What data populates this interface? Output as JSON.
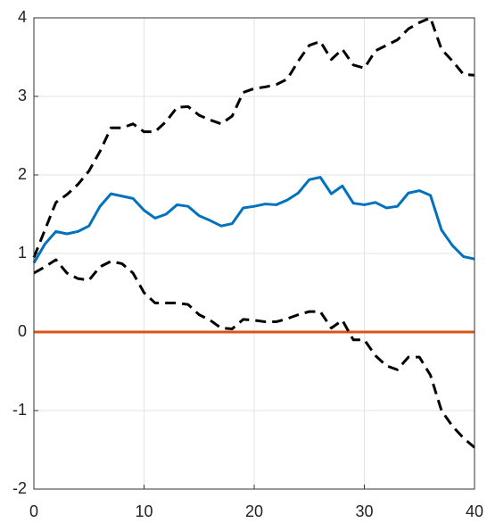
{
  "chart_data": {
    "type": "line",
    "x": [
      0,
      1,
      2,
      3,
      4,
      5,
      6,
      7,
      8,
      9,
      10,
      11,
      12,
      13,
      14,
      15,
      16,
      17,
      18,
      19,
      20,
      21,
      22,
      23,
      24,
      25,
      26,
      27,
      28,
      29,
      30,
      31,
      32,
      33,
      34,
      35,
      36,
      37,
      38,
      39,
      40
    ],
    "series": [
      {
        "color": "#0072bd",
        "dashed": false,
        "values": [
          0.88,
          1.12,
          1.28,
          1.25,
          1.28,
          1.35,
          1.6,
          1.76,
          1.73,
          1.7,
          1.55,
          1.45,
          1.5,
          1.62,
          1.6,
          1.48,
          1.42,
          1.35,
          1.38,
          1.58,
          1.6,
          1.63,
          1.62,
          1.68,
          1.77,
          1.94,
          1.97,
          1.76,
          1.86,
          1.64,
          1.62,
          1.65,
          1.58,
          1.6,
          1.77,
          1.8,
          1.74,
          1.3,
          1.1,
          0.96,
          0.93
        ]
      },
      {
        "color": "#000000",
        "dashed": true,
        "values": [
          0.95,
          1.3,
          1.65,
          1.75,
          1.88,
          2.05,
          2.3,
          2.6,
          2.6,
          2.65,
          2.55,
          2.55,
          2.68,
          2.86,
          2.87,
          2.76,
          2.7,
          2.65,
          2.75,
          3.05,
          3.1,
          3.12,
          3.15,
          3.22,
          3.45,
          3.65,
          3.7,
          3.47,
          3.6,
          3.4,
          3.36,
          3.58,
          3.65,
          3.72,
          3.86,
          3.94,
          4.0,
          3.6,
          3.45,
          3.28,
          3.27
        ]
      },
      {
        "color": "#000000",
        "dashed": true,
        "values": [
          0.75,
          0.83,
          0.92,
          0.75,
          0.68,
          0.66,
          0.83,
          0.9,
          0.87,
          0.75,
          0.5,
          0.37,
          0.37,
          0.37,
          0.35,
          0.22,
          0.15,
          0.05,
          0.04,
          0.16,
          0.15,
          0.13,
          0.13,
          0.17,
          0.22,
          0.26,
          0.26,
          0.05,
          0.15,
          -0.1,
          -0.1,
          -0.3,
          -0.43,
          -0.48,
          -0.32,
          -0.32,
          -0.55,
          -1.0,
          -1.2,
          -1.35,
          -1.47
        ]
      }
    ],
    "reference_line": {
      "value": 0,
      "color": "#d95319"
    },
    "xlim": [
      0,
      40
    ],
    "xticks": [
      0,
      10,
      20,
      30,
      40
    ],
    "ylim": [
      -2,
      4
    ],
    "yticks": [
      -2,
      -1,
      0,
      1,
      2,
      3,
      4
    ],
    "grid": true
  }
}
